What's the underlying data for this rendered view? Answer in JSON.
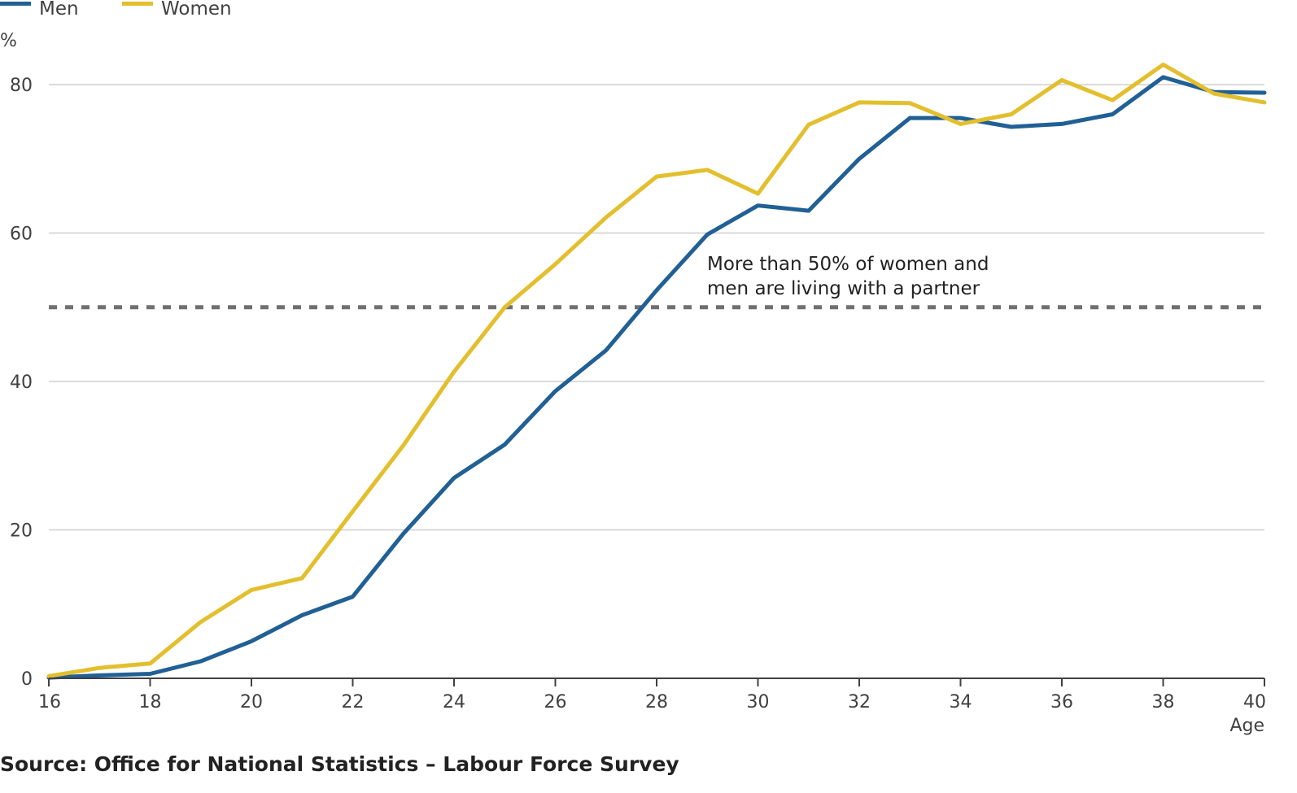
{
  "chart_data": {
    "type": "line",
    "title": "",
    "xlabel": "Age",
    "ylabel": "%",
    "x": [
      16,
      17,
      18,
      19,
      20,
      21,
      22,
      23,
      24,
      25,
      26,
      27,
      28,
      29,
      30,
      31,
      32,
      33,
      34,
      35,
      36,
      37,
      38,
      39,
      40
    ],
    "xlim": [
      16,
      40
    ],
    "ylim": [
      0,
      88
    ],
    "x_ticks": [
      16,
      18,
      20,
      22,
      24,
      26,
      28,
      30,
      32,
      34,
      36,
      38,
      40
    ],
    "y_ticks": [
      0,
      20,
      40,
      60,
      80
    ],
    "x_tick_labels": [
      "16",
      "18",
      "20",
      "22",
      "24",
      "26",
      "28",
      "30",
      "32",
      "34",
      "36",
      "38",
      "40"
    ],
    "y_tick_labels": [
      "0",
      "20",
      "40",
      "60",
      "80"
    ],
    "grid": "horizontal",
    "legend_position": "top-left",
    "series": [
      {
        "name": "Men",
        "color": "#206095",
        "values": [
          0.1,
          0.4,
          0.6,
          2.3,
          5.0,
          8.5,
          11.0,
          19.5,
          27.0,
          31.5,
          38.7,
          44.2,
          52.3,
          59.8,
          63.7,
          63.0,
          70.0,
          75.5,
          75.5,
          74.3,
          74.7,
          76.0,
          81.0,
          79.0,
          78.9
        ]
      },
      {
        "name": "Women",
        "color": "#E3BF2E",
        "values": [
          0.3,
          1.4,
          2.0,
          7.6,
          11.9,
          13.5,
          22.5,
          31.4,
          41.3,
          50.0,
          55.8,
          62.1,
          67.6,
          68.5,
          65.3,
          74.6,
          77.6,
          77.5,
          74.7,
          76.0,
          80.6,
          77.9,
          82.7,
          78.8,
          77.6
        ]
      }
    ],
    "reference_line": {
      "value": 50,
      "style": "dotted",
      "color": "#707071"
    },
    "annotation": {
      "lines": [
        "More than 50% of women and",
        "men are living with a partner"
      ],
      "anchor_x": 29,
      "anchor_y": 50
    },
    "source": "Source: Office for National Statistics – Labour Force Survey"
  }
}
